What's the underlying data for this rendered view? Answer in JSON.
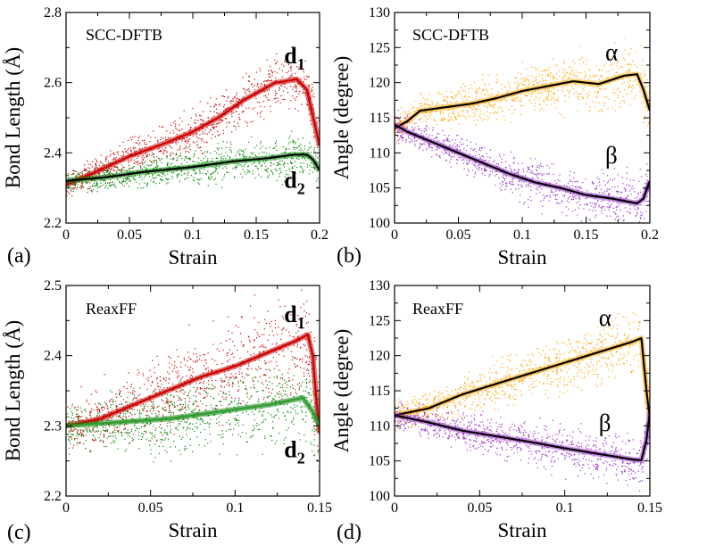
{
  "figure": {
    "panels": [
      {
        "id": "a",
        "panel_label": "(a)",
        "method": "SCC-DFTB",
        "chart_data": {
          "type": "line",
          "xlabel": "Strain",
          "ylabel": "Bond Length (Å)",
          "xlim": [
            0,
            0.2
          ],
          "ylim": [
            2.2,
            2.8
          ],
          "xticks": [
            0,
            0.05,
            0.1,
            0.15,
            0.2
          ],
          "xtick_labels": [
            "0",
            "0.05",
            "0.1",
            "0.15",
            "0.2"
          ],
          "yticks": [
            2.2,
            2.4,
            2.6,
            2.8
          ],
          "ytick_labels": [
            "2.2",
            "2.4",
            "2.6",
            "2.8"
          ],
          "series": [
            {
              "name": "d",
              "subscript": "1",
              "label_at": [
                0.172,
                2.655
              ],
              "color": "#cc0000",
              "line_color": "#cc0000",
              "scatter_spread": 0.06,
              "x": [
                0,
                0.02,
                0.05,
                0.08,
                0.1,
                0.12,
                0.14,
                0.155,
                0.165,
                0.175,
                0.182,
                0.19,
                0.195,
                0.2
              ],
              "y": [
                2.31,
                2.34,
                2.39,
                2.43,
                2.46,
                2.5,
                2.55,
                2.58,
                2.6,
                2.605,
                2.61,
                2.58,
                2.5,
                2.42
              ]
            },
            {
              "name": "d",
              "subscript": "2",
              "label_at": [
                0.172,
                2.3
              ],
              "color": "#008800",
              "line_color": "#000000",
              "scatter_spread": 0.05,
              "x": [
                0,
                0.03,
                0.06,
                0.1,
                0.13,
                0.16,
                0.18,
                0.19,
                0.195,
                0.2
              ],
              "y": [
                2.32,
                2.33,
                2.345,
                2.36,
                2.375,
                2.385,
                2.395,
                2.395,
                2.38,
                2.35
              ]
            }
          ]
        }
      },
      {
        "id": "b",
        "panel_label": "(b)",
        "method": "SCC-DFTB",
        "chart_data": {
          "type": "line",
          "xlabel": "Strain",
          "ylabel": "Angle (degree)",
          "xlim": [
            0,
            0.2
          ],
          "ylim": [
            100,
            130
          ],
          "xticks": [
            0,
            0.05,
            0.1,
            0.15,
            0.2
          ],
          "xtick_labels": [
            "0",
            "0.05",
            "0.1",
            "0.15",
            "0.2"
          ],
          "yticks": [
            100,
            105,
            110,
            115,
            120,
            125,
            130
          ],
          "ytick_labels": [
            "100",
            "105",
            "110",
            "115",
            "120",
            "125",
            "130"
          ],
          "series": [
            {
              "name": "α",
              "subscript": "",
              "label_at": [
                0.165,
                123.2
              ],
              "color": "#ffa500",
              "line_color": "#000000",
              "scatter_spread": 3.5,
              "x": [
                0,
                0.01,
                0.02,
                0.04,
                0.06,
                0.08,
                0.1,
                0.12,
                0.14,
                0.16,
                0.18,
                0.19,
                0.195,
                0.2
              ],
              "y": [
                113.5,
                114.5,
                116,
                116.5,
                117,
                117.8,
                118.8,
                119.5,
                120.2,
                119.8,
                121,
                121.2,
                119,
                116
              ]
            },
            {
              "name": "β",
              "subscript": "",
              "label_at": [
                0.165,
                108.5
              ],
              "color": "#9932cc",
              "line_color": "#000000",
              "scatter_spread": 3.0,
              "x": [
                0,
                0.01,
                0.03,
                0.05,
                0.07,
                0.09,
                0.11,
                0.13,
                0.15,
                0.17,
                0.19,
                0.195,
                0.2
              ],
              "y": [
                114,
                113,
                111.5,
                110,
                108.5,
                107,
                105.8,
                105,
                104,
                103.5,
                102.8,
                103.5,
                106
              ]
            }
          ]
        }
      },
      {
        "id": "c",
        "panel_label": "(c)",
        "method": "ReaxFF",
        "chart_data": {
          "type": "line",
          "xlabel": "Strain",
          "ylabel": "Bond Length (Å)",
          "xlim": [
            0,
            0.15
          ],
          "ylim": [
            2.2,
            2.5
          ],
          "xticks": [
            0,
            0.05,
            0.1,
            0.15
          ],
          "xtick_labels": [
            "0",
            "0.05",
            "0.1",
            "0.15"
          ],
          "yticks": [
            2.2,
            2.3,
            2.4,
            2.5
          ],
          "ytick_labels": [
            "2.2",
            "2.3",
            "2.4",
            "2.5"
          ],
          "series": [
            {
              "name": "d",
              "subscript": "1",
              "label_at": [
                0.129,
                2.448
              ],
              "color": "#cc0000",
              "line_color": "#cc0000",
              "scatter_spread": 0.06,
              "x": [
                0,
                0.02,
                0.04,
                0.06,
                0.08,
                0.1,
                0.12,
                0.135,
                0.143,
                0.146,
                0.148,
                0.15
              ],
              "y": [
                2.3,
                2.31,
                2.33,
                2.35,
                2.37,
                2.385,
                2.405,
                2.42,
                2.43,
                2.4,
                2.34,
                2.29
              ]
            },
            {
              "name": "d",
              "subscript": "2",
              "label_at": [
                0.129,
                2.255
              ],
              "color": "#008800",
              "line_color": "#339933",
              "scatter_spread": 0.05,
              "x": [
                0,
                0.03,
                0.06,
                0.09,
                0.12,
                0.14,
                0.146,
                0.15
              ],
              "y": [
                2.3,
                2.305,
                2.31,
                2.32,
                2.33,
                2.34,
                2.32,
                2.3
              ]
            }
          ]
        }
      },
      {
        "id": "d",
        "panel_label": "(d)",
        "method": "ReaxFF",
        "chart_data": {
          "type": "line",
          "xlabel": "Strain",
          "ylabel": "Angle (degree)",
          "xlim": [
            0,
            0.15
          ],
          "ylim": [
            100,
            130
          ],
          "xticks": [
            0,
            0.05,
            0.1,
            0.15
          ],
          "xtick_labels": [
            "0",
            "0.05",
            "0.1",
            "0.15"
          ],
          "yticks": [
            100,
            105,
            110,
            115,
            120,
            125,
            130
          ],
          "ytick_labels": [
            "100",
            "105",
            "110",
            "115",
            "120",
            "125",
            "130"
          ],
          "series": [
            {
              "name": "α",
              "subscript": "",
              "label_at": [
                0.12,
                124.3
              ],
              "color": "#ffa500",
              "line_color": "#000000",
              "scatter_spread": 3.5,
              "x": [
                0,
                0.02,
                0.04,
                0.06,
                0.08,
                0.1,
                0.12,
                0.14,
                0.145,
                0.148,
                0.15
              ],
              "y": [
                111.5,
                112.5,
                114.5,
                116,
                117.5,
                119,
                120.5,
                122,
                122.5,
                115,
                111
              ]
            },
            {
              "name": "β",
              "subscript": "",
              "label_at": [
                0.12,
                109.3
              ],
              "color": "#9932cc",
              "line_color": "#000000",
              "scatter_spread": 3.0,
              "x": [
                0,
                0.02,
                0.04,
                0.06,
                0.08,
                0.1,
                0.12,
                0.14,
                0.145,
                0.148,
                0.15
              ],
              "y": [
                111.5,
                110.5,
                109.3,
                108.5,
                107.7,
                106.8,
                106,
                105.2,
                105.1,
                108,
                112
              ]
            }
          ]
        }
      }
    ]
  }
}
